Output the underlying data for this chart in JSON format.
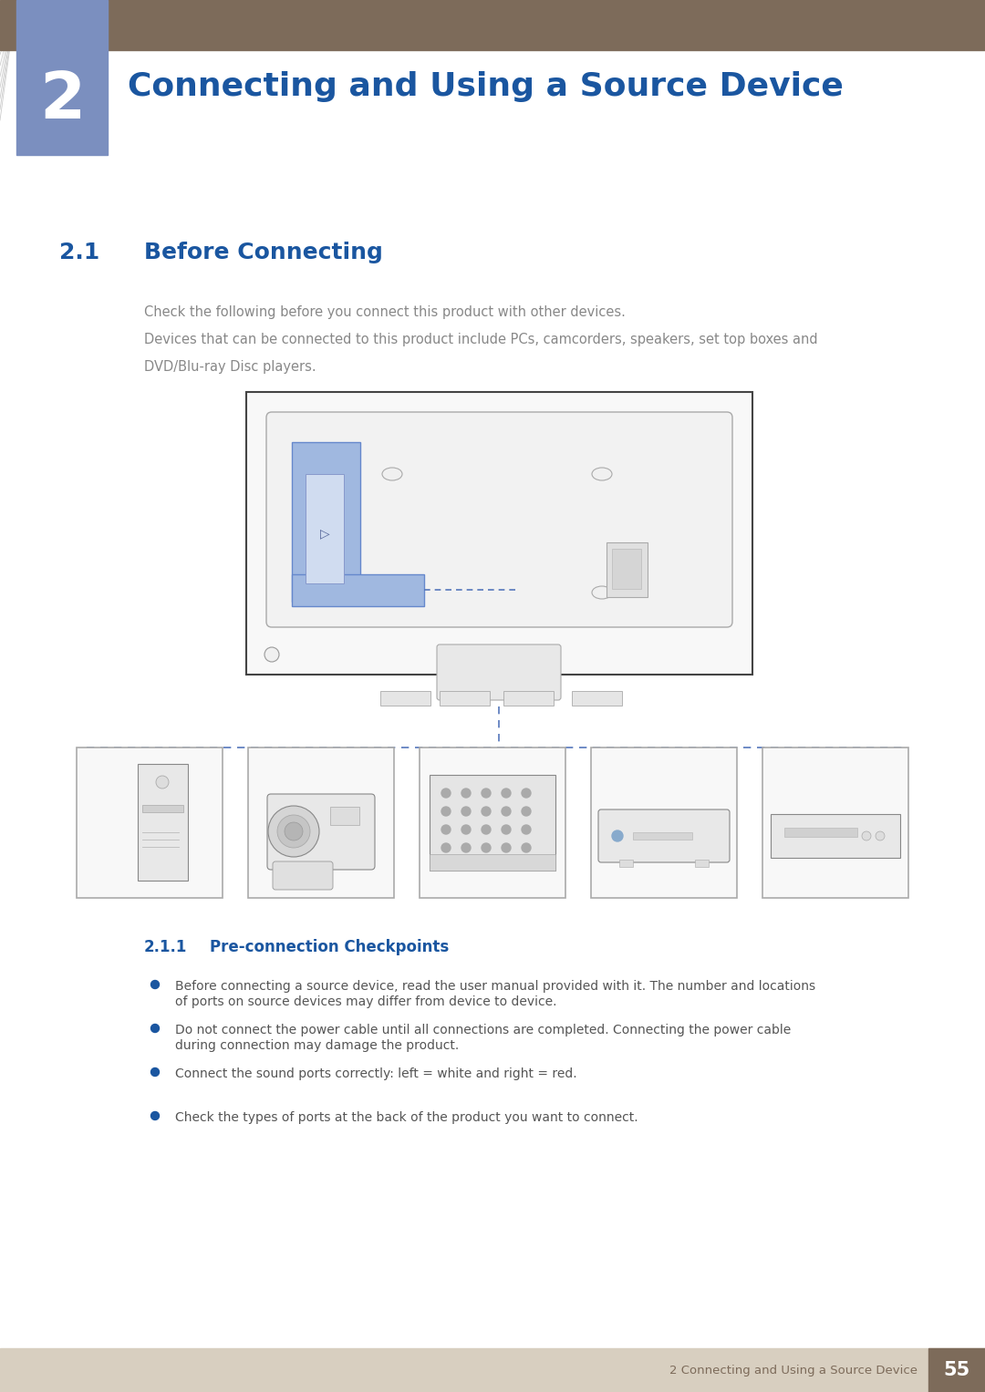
{
  "page_bg": "#ffffff",
  "header_bar_color": "#7d6b5a",
  "chapter_block_color": "#7b8fbf",
  "chapter_number": "2",
  "chapter_title": "Connecting and Using a Source Device",
  "chapter_title_color": "#1a56a0",
  "section_number": "2.1",
  "section_title": "Before Connecting",
  "section_title_color": "#1a56a0",
  "body_text_color": "#888888",
  "body_text1": "Check the following before you connect this product with other devices.",
  "body_text2": "Devices that can be connected to this product include PCs, camcorders, speakers, set top boxes and",
  "body_text3": "DVD/Blu-ray Disc players.",
  "subsection_number": "2.1.1",
  "subsection_title": "Pre-connection Checkpoints",
  "subsection_color": "#1a56a0",
  "bullet_points": [
    "Before connecting a source device, read the user manual provided with it. The number and locations\nof ports on source devices may differ from device to device.",
    "Do not connect the power cable until all connections are completed. Connecting the power cable\nduring connection may damage the product.",
    "Connect the sound ports correctly: left = white and right = red.",
    "Check the types of ports at the back of the product you want to connect."
  ],
  "bullet_color": "#1a56a0",
  "bullet_text_color": "#555555",
  "footer_bg": "#d8cfc0",
  "footer_text": "2 Connecting and Using a Source Device",
  "footer_text_color": "#7d6b5a",
  "footer_number": "55",
  "footer_number_bg": "#7d6b5a",
  "footer_number_color": "#ffffff",
  "dashed_line_color": "#5577bb",
  "monitor_edge_color": "#444444",
  "monitor_inner_color": "#aaaaaa",
  "monitor_blue_fill": "#a0b8e0",
  "monitor_blue_stroke": "#6688cc"
}
